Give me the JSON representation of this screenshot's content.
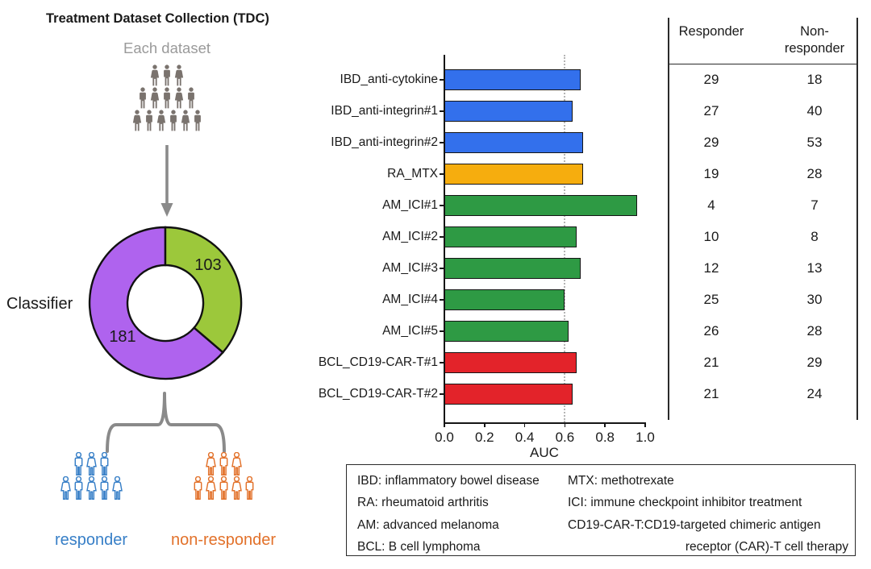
{
  "title": "Treatment Dataset Collection (TDC)",
  "diagram": {
    "each_dataset_label": "Each dataset",
    "classifier_label": "Classifier",
    "donut": {
      "green_value": 103,
      "purple_value": 181,
      "green_color": "#9cc83b",
      "purple_color": "#af63ee",
      "outline_color": "#111111"
    },
    "responder_label": "responder",
    "non_responder_label": "non-responder",
    "responder_color": "#377fc7",
    "non_responder_color": "#e2712a",
    "people_color": "#7a736e",
    "arrow_color": "#8a8a8a",
    "people": {
      "pyramid_rows": [
        3,
        5,
        6
      ],
      "responder_rows": [
        3,
        5
      ],
      "non_responder_rows": [
        3,
        5
      ]
    }
  },
  "chart_data": {
    "type": "bar",
    "orientation": "horizontal",
    "title": "",
    "xlabel": "AUC",
    "ylabel": "",
    "xlim": [
      0.0,
      1.0
    ],
    "xticks": [
      0.0,
      0.2,
      0.4,
      0.6,
      0.8,
      1.0
    ],
    "reference_line_x": 0.6,
    "grid": "dotted vertical line at 0.6 only",
    "categories": [
      "IBD_anti-cytokine",
      "IBD_anti-integrin#1",
      "IBD_anti-integrin#2",
      "RA_MTX",
      "AM_ICI#1",
      "AM_ICI#2",
      "AM_ICI#3",
      "AM_ICI#4",
      "AM_ICI#5",
      "BCL_CD19-CAR-T#1",
      "BCL_CD19-CAR-T#2"
    ],
    "values": [
      0.68,
      0.64,
      0.69,
      0.69,
      0.96,
      0.66,
      0.68,
      0.6,
      0.62,
      0.66,
      0.64
    ],
    "bar_colors": [
      "#3370ec",
      "#3370ec",
      "#3370ec",
      "#f6ad0e",
      "#2e9a44",
      "#2e9a44",
      "#2e9a44",
      "#2e9a44",
      "#2e9a44",
      "#e3232a",
      "#e3232a"
    ],
    "bar_outline_color": "#151515"
  },
  "table": {
    "col1_header": "Responder",
    "col2_header": "Non-responder",
    "rows": [
      {
        "responder": 29,
        "non_responder": 18
      },
      {
        "responder": 27,
        "non_responder": 40
      },
      {
        "responder": 29,
        "non_responder": 53
      },
      {
        "responder": 19,
        "non_responder": 28
      },
      {
        "responder": 4,
        "non_responder": 7
      },
      {
        "responder": 10,
        "non_responder": 8
      },
      {
        "responder": 12,
        "non_responder": 13
      },
      {
        "responder": 25,
        "non_responder": 30
      },
      {
        "responder": 26,
        "non_responder": 28
      },
      {
        "responder": 21,
        "non_responder": 29
      },
      {
        "responder": 21,
        "non_responder": 24
      }
    ]
  },
  "legend": {
    "left": [
      "IBD: inflammatory bowel disease",
      "RA: rheumatoid arthritis",
      "AM: advanced melanoma",
      "BCL: B cell lymphoma"
    ],
    "right": [
      "MTX: methotrexate",
      "ICI: immune checkpoint inhibitor treatment",
      "CD19-CAR-T:CD19-targeted chimeric antigen",
      "receptor (CAR)-T cell therapy"
    ]
  }
}
